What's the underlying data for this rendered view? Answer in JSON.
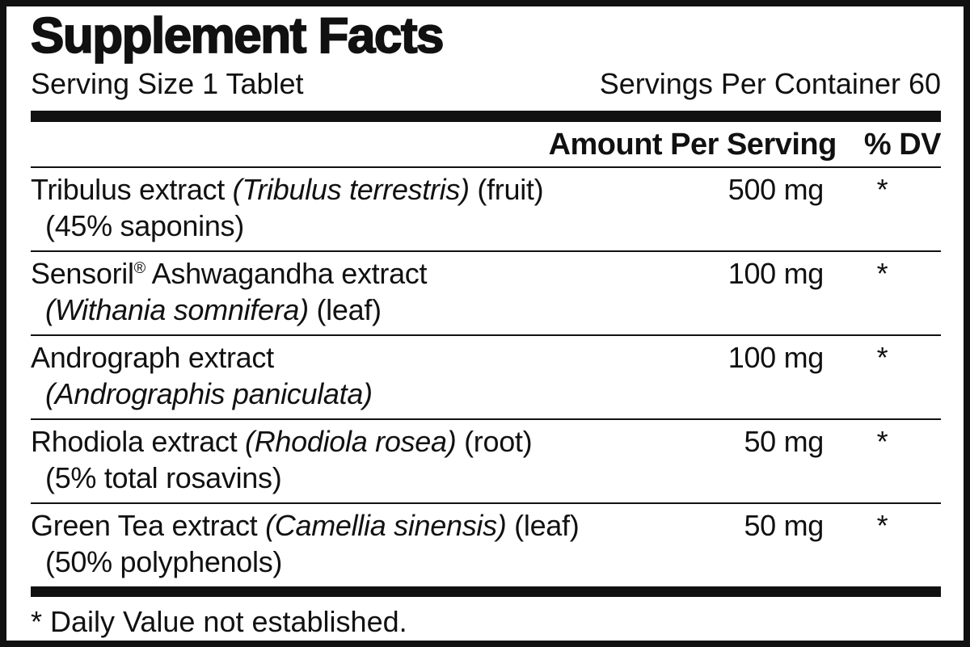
{
  "panel": {
    "title": "Supplement Facts",
    "serving_size": "Serving Size 1 Tablet",
    "servings_per_container": "Servings Per Container 60",
    "columns": {
      "amount_header": "Amount Per Serving",
      "dv_header": "% DV"
    },
    "rows": [
      {
        "name_lines": [
          [
            {
              "t": "Tribulus extract "
            },
            {
              "t": "(Tribulus terrestris)",
              "i": true
            },
            {
              "t": " (fruit)"
            }
          ],
          [
            {
              "t": "(45% saponins)"
            }
          ]
        ],
        "amount": "500 mg",
        "dv": "*"
      },
      {
        "name_lines": [
          [
            {
              "t": "Sensoril"
            },
            {
              "t": "®",
              "sup": true
            },
            {
              "t": " Ashwagandha extract"
            }
          ],
          [
            {
              "t": "(Withania somnifera)",
              "i": true
            },
            {
              "t": " (leaf)"
            }
          ]
        ],
        "amount": "100 mg",
        "dv": "*"
      },
      {
        "name_lines": [
          [
            {
              "t": "Andrograph extract"
            }
          ],
          [
            {
              "t": "(Andrographis paniculata)",
              "i": true
            }
          ]
        ],
        "amount": "100 mg",
        "dv": "*"
      },
      {
        "name_lines": [
          [
            {
              "t": "Rhodiola extract "
            },
            {
              "t": "(Rhodiola rosea)",
              "i": true
            },
            {
              "t": " (root)"
            }
          ],
          [
            {
              "t": "(5% total rosavins)"
            }
          ]
        ],
        "amount": "50 mg",
        "dv": "*"
      },
      {
        "name_lines": [
          [
            {
              "t": "Green Tea extract "
            },
            {
              "t": "(Camellia sinensis)",
              "i": true
            },
            {
              "t": " (leaf)"
            }
          ],
          [
            {
              "t": "(50% polyphenols)"
            }
          ]
        ],
        "amount": "50 mg",
        "dv": "*"
      }
    ],
    "footnote": "* Daily Value not established.",
    "colors": {
      "ink": "#111111",
      "background": "#ffffff"
    }
  }
}
